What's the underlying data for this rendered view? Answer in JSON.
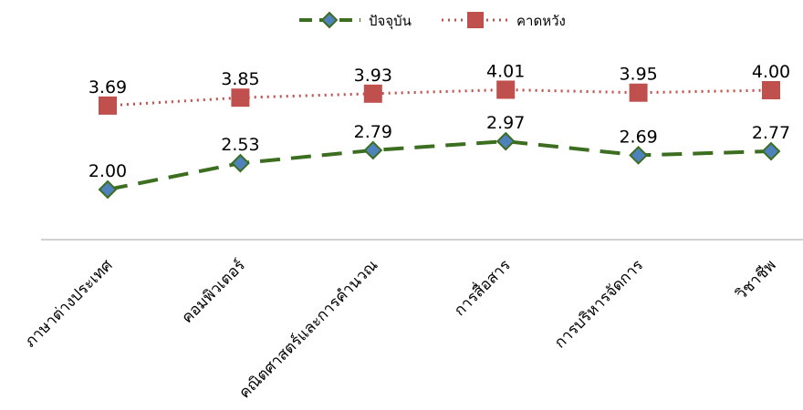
{
  "chart_data": {
    "type": "line",
    "title": "",
    "xlabel": "",
    "ylabel": "",
    "categories": [
      "ภาษาต่างประเทศ",
      "คอมพิวเตอร์",
      "คณิตศาสตร์และการคำนวณ",
      "การสื่อสาร",
      "การบริหารจัดการ",
      "วิชาชีพ"
    ],
    "series": [
      {
        "name": "ปัจจุบัน",
        "values": [
          2.0,
          2.53,
          2.79,
          2.97,
          2.69,
          2.77
        ],
        "labels": [
          "2.00",
          "2.53",
          "2.79",
          "2.97",
          "2.69",
          "2.77"
        ],
        "color": "#3B6E1F",
        "marker_color": "#4F81BD",
        "line_style": "dashed",
        "marker": "diamond"
      },
      {
        "name": "คาดหวัง",
        "values": [
          3.69,
          3.85,
          3.93,
          4.01,
          3.95,
          4.0
        ],
        "labels": [
          "3.69",
          "3.85",
          "3.93",
          "4.01",
          "3.95",
          "4.00"
        ],
        "color": "#C0504D",
        "marker_color": "#C0504D",
        "line_style": "dotted",
        "marker": "square"
      }
    ],
    "legend": "top-center",
    "grid": false
  }
}
